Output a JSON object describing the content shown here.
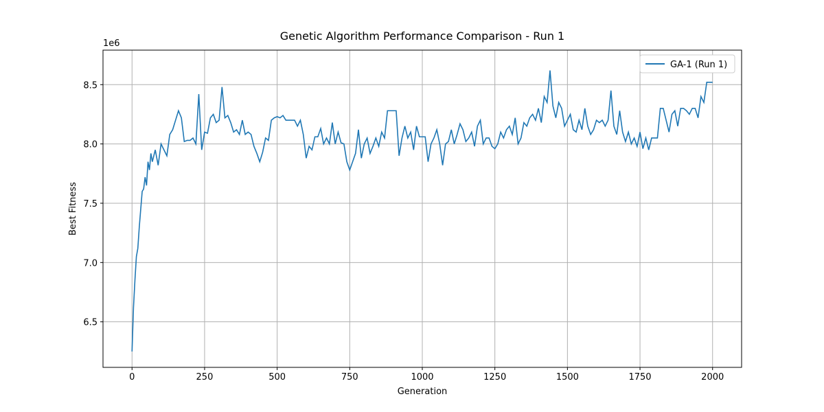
{
  "chart_data": {
    "type": "line",
    "title": "Genetic Algorithm Performance Comparison - Run 1",
    "x_label": "Generation",
    "y_label": "Best Fitness",
    "y_offset_label": "1e6",
    "xlim": [
      -100,
      2100
    ],
    "ylim": [
      6.116,
      8.791
    ],
    "xticks": [
      0,
      250,
      500,
      750,
      1000,
      1250,
      1500,
      1750,
      2000
    ],
    "yticks": [
      6.5,
      {
        "value": 7,
        "label": "7.0"
      },
      7.5,
      {
        "value": 8,
        "label": "8.0"
      },
      8.5
    ],
    "grid": true,
    "legend_position": "upper right",
    "x": [
      0,
      5,
      10,
      15,
      20,
      25,
      30,
      35,
      40,
      45,
      50,
      55,
      60,
      65,
      70,
      80,
      90,
      100,
      110,
      120,
      130,
      140,
      150,
      160,
      170,
      180,
      190,
      200,
      210,
      220,
      230,
      240,
      250,
      260,
      270,
      280,
      290,
      300,
      310,
      320,
      330,
      340,
      350,
      360,
      370,
      380,
      390,
      400,
      410,
      420,
      430,
      440,
      450,
      460,
      470,
      480,
      490,
      500,
      510,
      520,
      530,
      540,
      550,
      560,
      570,
      580,
      590,
      600,
      610,
      620,
      630,
      640,
      650,
      660,
      670,
      680,
      690,
      700,
      710,
      720,
      730,
      740,
      750,
      760,
      770,
      780,
      790,
      800,
      810,
      820,
      830,
      840,
      850,
      860,
      870,
      880,
      890,
      900,
      910,
      920,
      930,
      940,
      950,
      960,
      970,
      980,
      990,
      1000,
      1010,
      1020,
      1030,
      1040,
      1050,
      1060,
      1070,
      1080,
      1090,
      1100,
      1110,
      1120,
      1130,
      1140,
      1150,
      1160,
      1170,
      1180,
      1190,
      1200,
      1210,
      1220,
      1230,
      1240,
      1250,
      1260,
      1270,
      1280,
      1290,
      1300,
      1310,
      1320,
      1330,
      1340,
      1350,
      1360,
      1370,
      1380,
      1390,
      1400,
      1410,
      1420,
      1430,
      1440,
      1450,
      1460,
      1470,
      1480,
      1490,
      1500,
      1510,
      1520,
      1530,
      1540,
      1550,
      1560,
      1570,
      1580,
      1590,
      1600,
      1610,
      1620,
      1630,
      1640,
      1650,
      1660,
      1670,
      1680,
      1690,
      1700,
      1710,
      1720,
      1730,
      1740,
      1750,
      1760,
      1770,
      1780,
      1790,
      1800,
      1810,
      1820,
      1830,
      1840,
      1850,
      1860,
      1870,
      1880,
      1890,
      1900,
      1910,
      1920,
      1930,
      1940,
      1950,
      1960,
      1970,
      1980,
      1990,
      2000
    ],
    "series": [
      {
        "name": "GA-1 (Run 1)",
        "color": "#1f77b4",
        "values": [
          6.25,
          6.62,
          6.85,
          7.05,
          7.12,
          7.3,
          7.45,
          7.6,
          7.62,
          7.72,
          7.65,
          7.85,
          7.78,
          7.92,
          7.85,
          7.95,
          7.82,
          8.0,
          7.95,
          7.9,
          8.08,
          8.12,
          8.2,
          8.28,
          8.22,
          8.02,
          8.03,
          8.03,
          8.05,
          8.0,
          8.42,
          7.95,
          8.1,
          8.09,
          8.22,
          8.25,
          8.18,
          8.2,
          8.48,
          8.22,
          8.24,
          8.18,
          8.1,
          8.12,
          8.08,
          8.2,
          8.08,
          8.1,
          8.08,
          7.98,
          7.92,
          7.85,
          7.93,
          8.05,
          8.03,
          8.2,
          8.22,
          8.23,
          8.22,
          8.24,
          8.2,
          8.2,
          8.2,
          8.2,
          8.15,
          8.2,
          8.08,
          7.88,
          7.98,
          7.95,
          8.06,
          8.06,
          8.13,
          8.0,
          8.05,
          8.0,
          8.18,
          8.0,
          8.1,
          8.01,
          8.0,
          7.85,
          7.78,
          7.85,
          7.92,
          8.12,
          7.88,
          8.0,
          8.05,
          7.92,
          7.98,
          8.05,
          7.98,
          8.1,
          8.05,
          8.28,
          8.28,
          8.28,
          8.28,
          7.9,
          8.05,
          8.15,
          8.05,
          8.1,
          7.95,
          8.15,
          8.06,
          8.06,
          8.06,
          7.85,
          8.0,
          8.05,
          8.12,
          8.0,
          7.82,
          8.0,
          8.02,
          8.12,
          8.0,
          8.08,
          8.17,
          8.12,
          8.02,
          8.05,
          8.1,
          7.98,
          8.15,
          8.2,
          8.0,
          8.05,
          8.05,
          7.98,
          7.96,
          8.0,
          8.1,
          8.05,
          8.12,
          8.15,
          8.08,
          8.22,
          8.0,
          8.05,
          8.18,
          8.15,
          8.22,
          8.25,
          8.2,
          8.3,
          8.18,
          8.4,
          8.35,
          8.62,
          8.32,
          8.22,
          8.35,
          8.3,
          8.15,
          8.2,
          8.25,
          8.12,
          8.1,
          8.2,
          8.12,
          8.3,
          8.15,
          8.08,
          8.12,
          8.2,
          8.18,
          8.2,
          8.15,
          8.2,
          8.45,
          8.15,
          8.08,
          8.28,
          8.1,
          8.02,
          8.1,
          8.0,
          8.05,
          7.98,
          8.1,
          7.96,
          8.05,
          7.95,
          8.05,
          8.05,
          8.05,
          8.3,
          8.3,
          8.2,
          8.1,
          8.25,
          8.28,
          8.15,
          8.3,
          8.3,
          8.28,
          8.25,
          8.3,
          8.3,
          8.22,
          8.4,
          8.35,
          8.52,
          8.52,
          8.52
        ]
      }
    ]
  }
}
